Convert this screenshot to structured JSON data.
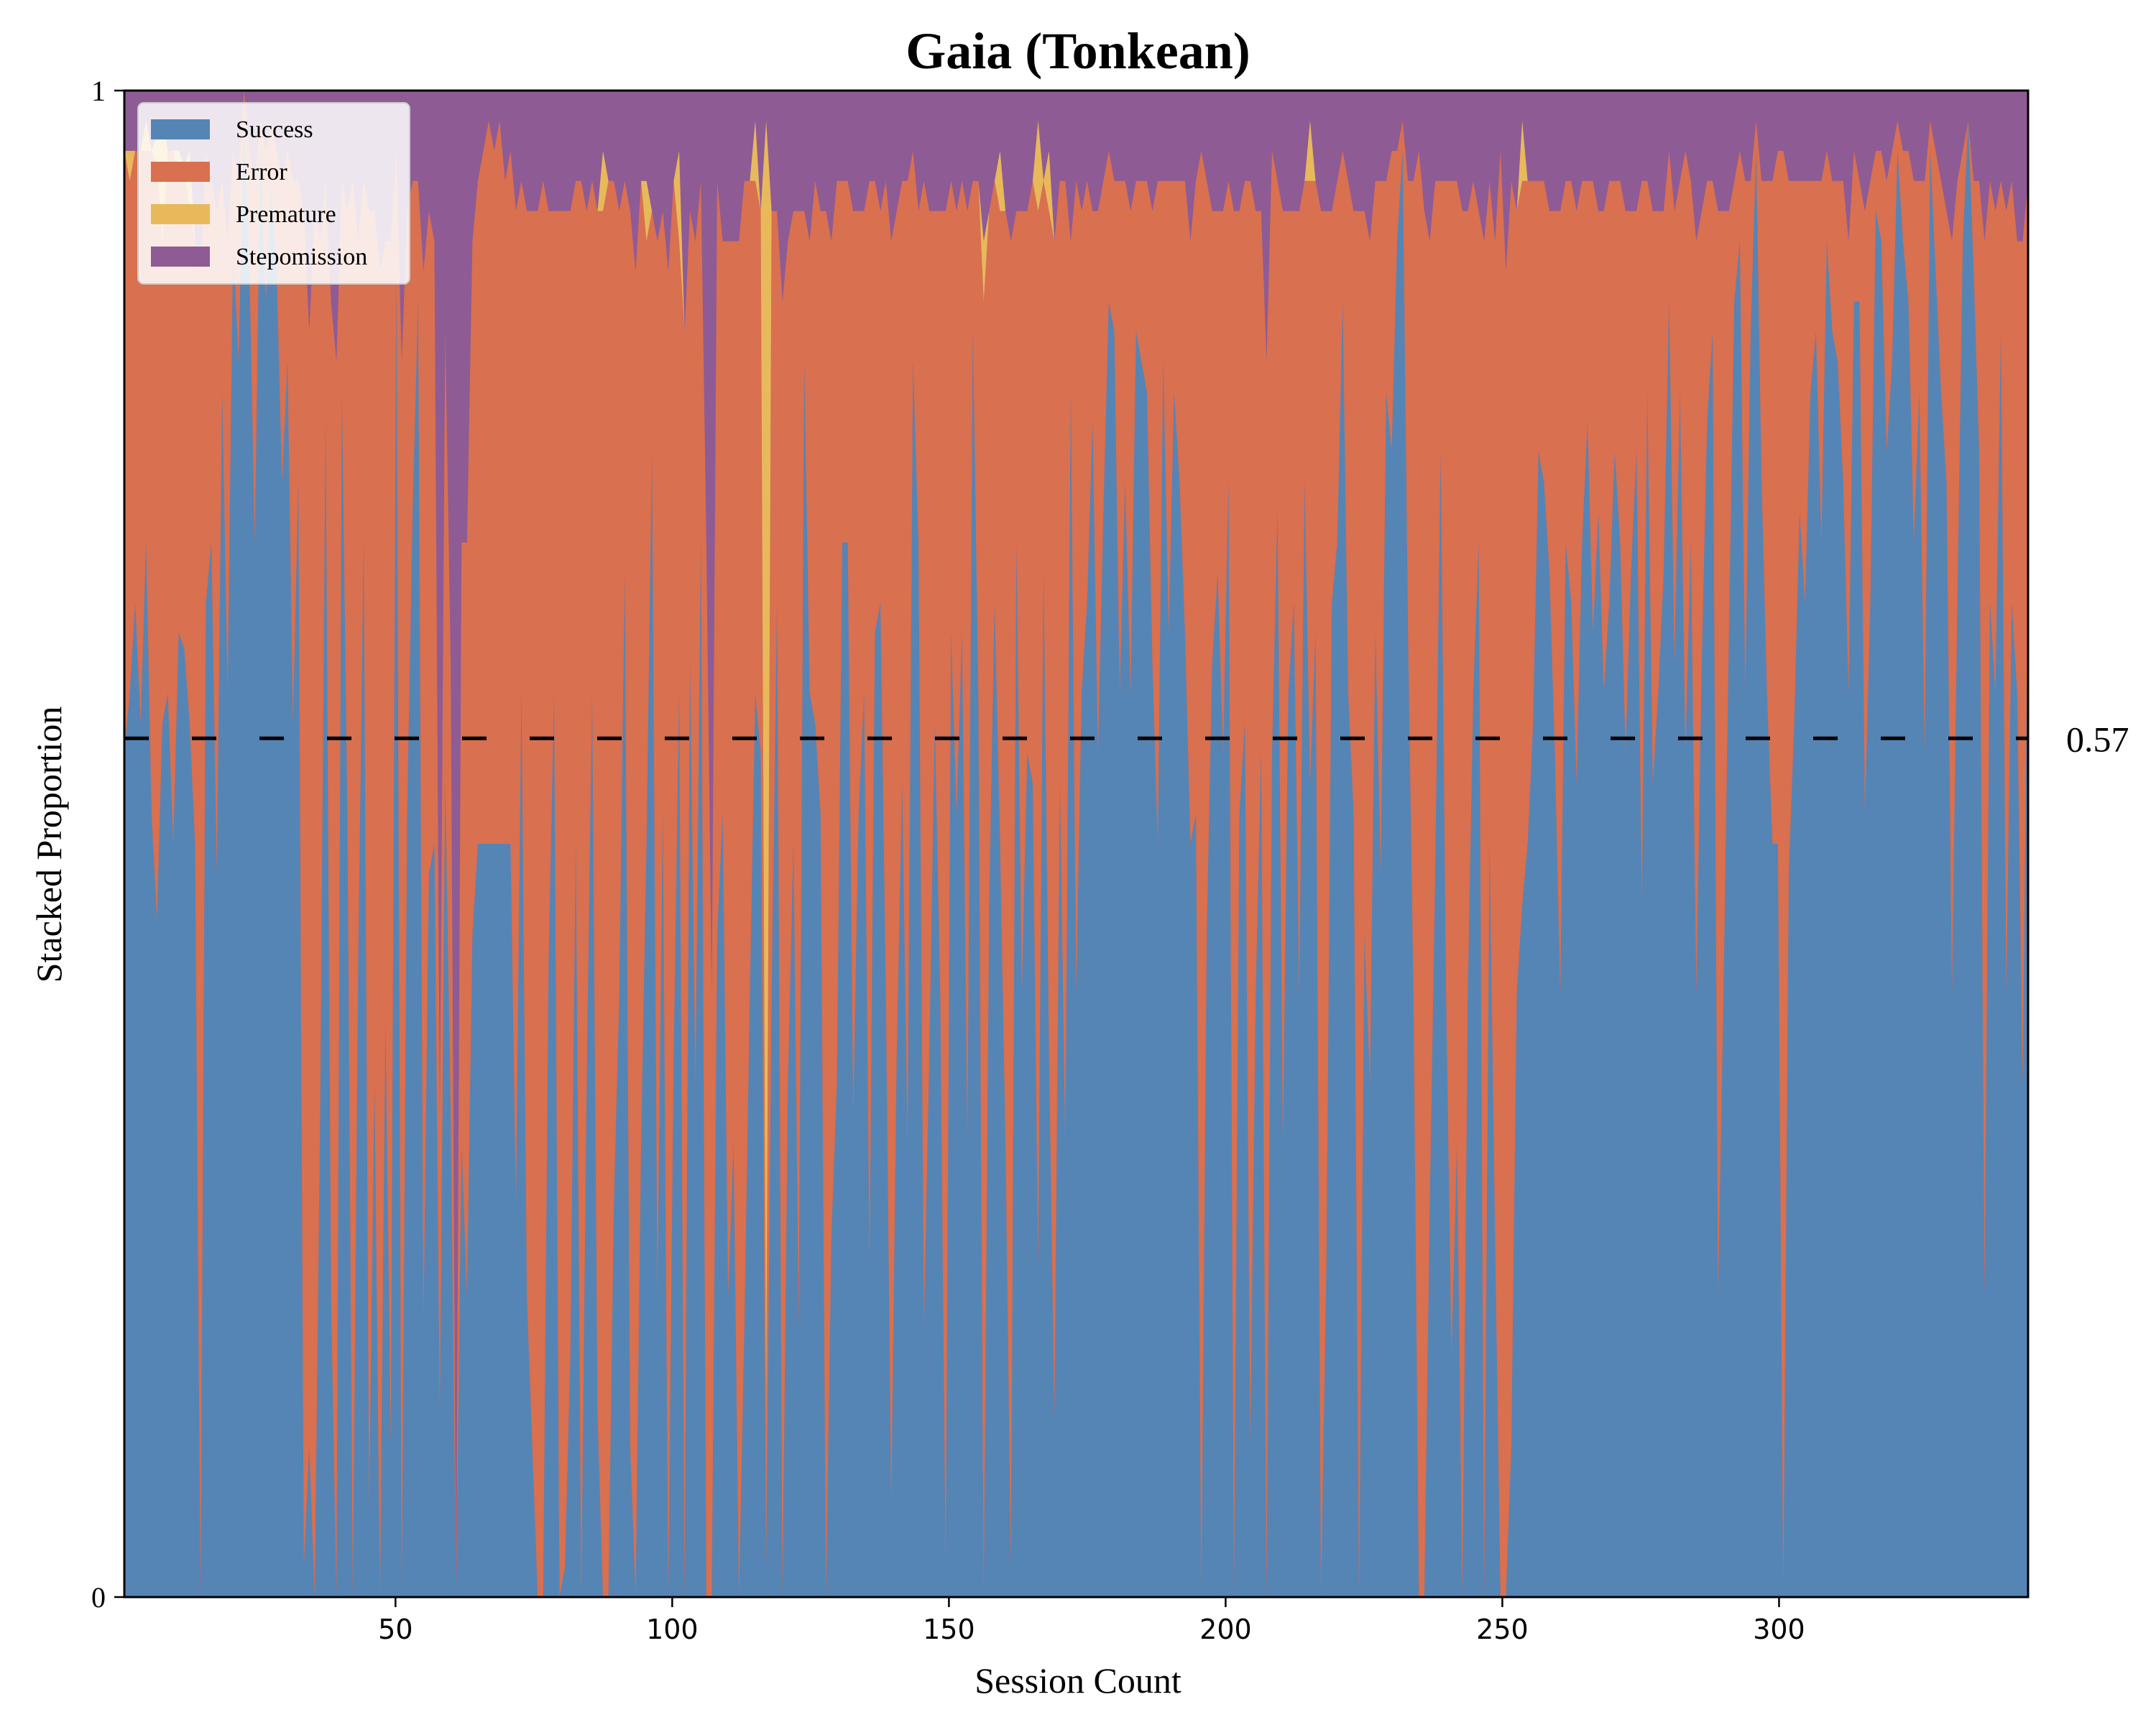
{
  "chart_data": {
    "type": "area",
    "stacked": true,
    "normalized": true,
    "title": "Gaia (Tonkean)",
    "xlabel": "Session Count",
    "ylabel": "Stacked Proportion",
    "xlim": [
      1,
      345
    ],
    "ylim": [
      0,
      1
    ],
    "x_ticks": [
      50,
      100,
      150,
      200,
      250,
      300
    ],
    "y_ticks": [
      0,
      1
    ],
    "grid": "vertical dashed",
    "legend_position": "top-left",
    "reference_line": {
      "y": 0.57,
      "label": "0.57",
      "style": "dashed",
      "color": "#000000"
    },
    "series": [
      {
        "name": "Success",
        "color": "#5585b5",
        "values": [
          0.56,
          0.6,
          0.66,
          0.58,
          0.7,
          0.52,
          0.45,
          0.58,
          0.6,
          0.5,
          0.64,
          0.63,
          0.58,
          0.5,
          0.0,
          0.66,
          0.7,
          0.48,
          0.8,
          0.6,
          0.9,
          0.82,
          0.98,
          0.88,
          0.7,
          0.96,
          0.86,
          0.94,
          0.88,
          0.74,
          0.82,
          0.58,
          0.74,
          0.02,
          0.1,
          0.0,
          0.32,
          0.78,
          0.2,
          0.0,
          0.8,
          0.52,
          0.0,
          0.42,
          0.7,
          0.06,
          0.34,
          0.0,
          0.38,
          0.1,
          0.88,
          0.0,
          0.52,
          0.72,
          0.86,
          0.18,
          0.48,
          0.5,
          0.12,
          0.54,
          0.32,
          0.0,
          0.3,
          0.2,
          0.44,
          0.5,
          0.5,
          0.5,
          0.5,
          0.5,
          0.5,
          0.5,
          0.26,
          0.6,
          0.2,
          0.1,
          0.0,
          0.0,
          0.42,
          0.6,
          0.0,
          0.02,
          0.16,
          0.5,
          0.0,
          0.34,
          0.6,
          0.12,
          0.0,
          0.0,
          0.26,
          0.4,
          0.68,
          0.1,
          0.0,
          0.3,
          0.5,
          0.76,
          0.2,
          0.52,
          0.0,
          0.36,
          0.6,
          0.0,
          0.62,
          0.34,
          0.7,
          0.0,
          0.0,
          0.44,
          0.52,
          0.2,
          0.3,
          0.0,
          0.18,
          0.4,
          0.6,
          0.56,
          0.02,
          0.4,
          0.66,
          0.0,
          0.34,
          0.5,
          0.18,
          0.82,
          0.6,
          0.58,
          0.52,
          0.0,
          0.24,
          0.34,
          0.7,
          0.7,
          0.32,
          0.52,
          0.6,
          0.22,
          0.64,
          0.66,
          0.4,
          0.06,
          0.36,
          0.54,
          0.3,
          0.82,
          0.7,
          0.18,
          0.36,
          0.58,
          0.4,
          0.02,
          0.64,
          0.52,
          0.64,
          0.3,
          0.84,
          0.6,
          0.0,
          0.46,
          0.66,
          0.5,
          0.3,
          0.02,
          0.7,
          0.4,
          0.56,
          0.54,
          0.22,
          0.68,
          0.36,
          0.12,
          0.54,
          0.3,
          0.8,
          0.4,
          0.6,
          0.66,
          0.78,
          0.56,
          0.72,
          0.86,
          0.84,
          0.6,
          0.74,
          0.6,
          0.84,
          0.82,
          0.8,
          0.62,
          0.5,
          0.82,
          0.64,
          0.8,
          0.74,
          0.64,
          0.5,
          0.52,
          0.0,
          0.44,
          0.62,
          0.68,
          0.56,
          0.74,
          0.0,
          0.52,
          0.58,
          0.1,
          0.4,
          0.56,
          0.0,
          0.56,
          0.72,
          0.3,
          0.6,
          0.66,
          0.4,
          0.74,
          0.54,
          0.64,
          0.0,
          0.22,
          0.66,
          0.7,
          0.86,
          0.6,
          0.52,
          0.0,
          0.44,
          0.34,
          0.64,
          0.48,
          0.8,
          0.76,
          0.9,
          0.96,
          0.64,
          0.4,
          0.0,
          0.0,
          0.26,
          0.48,
          0.76,
          0.4,
          0.16,
          0.3,
          0.0,
          0.4,
          0.6,
          0.7,
          0.0,
          0.5,
          0.24,
          0.0,
          0.0,
          0.1,
          0.4,
          0.46,
          0.5,
          0.58,
          0.76,
          0.74,
          0.68,
          0.56,
          0.4,
          0.7,
          0.66,
          0.54,
          0.7,
          0.78,
          0.64,
          0.72,
          0.6,
          0.66,
          0.76,
          0.7,
          0.56,
          0.68,
          0.76,
          0.46,
          0.8,
          0.54,
          0.6,
          0.68,
          0.86,
          0.62,
          0.8,
          0.56,
          0.7,
          0.4,
          0.62,
          0.78,
          0.84,
          0.2,
          0.4,
          0.64,
          0.86,
          0.9,
          0.6,
          0.84,
          0.96,
          0.74,
          0.6,
          0.5,
          0.5,
          0.0,
          0.48,
          0.58,
          0.72,
          0.66,
          0.8,
          0.84,
          0.7,
          0.9,
          0.84,
          0.82,
          0.74,
          0.6,
          0.86,
          0.86,
          0.52,
          0.66,
          0.92,
          0.9,
          0.76,
          0.82,
          0.96,
          0.9,
          0.86,
          0.7,
          0.8,
          0.56,
          0.96,
          0.88,
          0.8,
          0.74,
          0.4,
          0.66,
          0.9,
          0.98,
          0.88,
          0.76,
          0.2,
          0.66,
          0.6,
          0.84,
          0.4,
          0.66,
          0.6,
          0.34,
          0.68
        ]
      },
      {
        "name": "Error",
        "color": "#d9704f",
        "values": [
          0.4,
          0.34,
          0.3,
          0.38,
          0.26,
          0.44,
          0.5,
          0.32,
          0.36,
          0.46,
          0.3,
          0.32,
          0.34,
          0.4,
          0.88,
          0.3,
          0.24,
          0.44,
          0.14,
          0.3,
          0.06,
          0.12,
          0.02,
          0.08,
          0.24,
          0.02,
          0.1,
          0.04,
          0.08,
          0.2,
          0.14,
          0.36,
          0.2,
          0.9,
          0.74,
          0.92,
          0.58,
          0.16,
          0.66,
          0.82,
          0.14,
          0.4,
          0.94,
          0.48,
          0.24,
          0.86,
          0.58,
          0.88,
          0.52,
          0.8,
          0.08,
          0.82,
          0.4,
          0.22,
          0.08,
          0.7,
          0.44,
          0.4,
          0.2,
          0.3,
          0.3,
          0.0,
          0.4,
          0.5,
          0.46,
          0.44,
          0.46,
          0.48,
          0.46,
          0.48,
          0.44,
          0.46,
          0.66,
          0.34,
          0.72,
          0.82,
          0.92,
          0.94,
          0.5,
          0.32,
          0.92,
          0.9,
          0.76,
          0.44,
          0.94,
          0.58,
          0.34,
          0.8,
          0.92,
          0.94,
          0.68,
          0.52,
          0.26,
          0.82,
          0.88,
          0.64,
          0.4,
          0.16,
          0.7,
          0.4,
          0.88,
          0.58,
          0.3,
          0.84,
          0.3,
          0.56,
          0.24,
          0.7,
          0.4,
          0.5,
          0.38,
          0.7,
          0.6,
          0.9,
          0.76,
          0.54,
          0.34,
          0.36,
          0.1,
          0.52,
          0.26,
          0.86,
          0.56,
          0.42,
          0.74,
          0.1,
          0.3,
          0.36,
          0.4,
          0.92,
          0.66,
          0.6,
          0.24,
          0.24,
          0.6,
          0.4,
          0.32,
          0.72,
          0.3,
          0.26,
          0.54,
          0.84,
          0.56,
          0.4,
          0.64,
          0.14,
          0.22,
          0.76,
          0.56,
          0.34,
          0.52,
          0.9,
          0.3,
          0.4,
          0.3,
          0.62,
          0.1,
          0.34,
          0.86,
          0.46,
          0.28,
          0.42,
          0.62,
          0.88,
          0.22,
          0.52,
          0.36,
          0.4,
          0.7,
          0.26,
          0.56,
          0.78,
          0.4,
          0.64,
          0.1,
          0.54,
          0.32,
          0.28,
          0.14,
          0.36,
          0.22,
          0.1,
          0.1,
          0.34,
          0.2,
          0.32,
          0.1,
          0.12,
          0.14,
          0.3,
          0.44,
          0.12,
          0.3,
          0.14,
          0.2,
          0.3,
          0.4,
          0.42,
          0.96,
          0.5,
          0.3,
          0.24,
          0.36,
          0.2,
          0.92,
          0.4,
          0.36,
          0.84,
          0.52,
          0.36,
          0.82,
          0.4,
          0.22,
          0.62,
          0.32,
          0.26,
          0.52,
          0.2,
          0.4,
          0.3,
          0.92,
          0.7,
          0.26,
          0.24,
          0.1,
          0.34,
          0.4,
          0.92,
          0.48,
          0.56,
          0.3,
          0.46,
          0.14,
          0.2,
          0.06,
          0.02,
          0.3,
          0.54,
          0.96,
          0.92,
          0.64,
          0.46,
          0.18,
          0.54,
          0.78,
          0.64,
          0.92,
          0.52,
          0.34,
          0.22,
          0.9,
          0.44,
          0.66,
          0.96,
          0.88,
          0.84,
          0.52,
          0.48,
          0.44,
          0.36,
          0.18,
          0.2,
          0.24,
          0.36,
          0.52,
          0.24,
          0.28,
          0.38,
          0.24,
          0.16,
          0.3,
          0.2,
          0.32,
          0.28,
          0.18,
          0.24,
          0.36,
          0.24,
          0.16,
          0.48,
          0.14,
          0.38,
          0.32,
          0.24,
          0.1,
          0.3,
          0.14,
          0.4,
          0.24,
          0.5,
          0.3,
          0.16,
          0.1,
          0.72,
          0.52,
          0.28,
          0.08,
          0.06,
          0.34,
          0.1,
          0.02,
          0.2,
          0.34,
          0.44,
          0.46,
          0.96,
          0.46,
          0.36,
          0.22,
          0.28,
          0.14,
          0.1,
          0.24,
          0.06,
          0.1,
          0.12,
          0.2,
          0.3,
          0.1,
          0.08,
          0.4,
          0.28,
          0.04,
          0.06,
          0.18,
          0.14,
          0.02,
          0.06,
          0.1,
          0.24,
          0.14,
          0.38,
          0.02,
          0.08,
          0.14,
          0.18,
          0.5,
          0.28,
          0.06,
          0.0,
          0.06,
          0.18,
          0.7,
          0.28,
          0.32,
          0.1,
          0.52,
          0.28,
          0.3,
          0.56,
          0.26
        ]
      },
      {
        "name": "Premature",
        "color": "#e8b95a",
        "values": [
          0.0,
          0.02,
          0.0,
          0.0,
          0.02,
          0.0,
          0.02,
          0.08,
          0.0,
          0.0,
          0.02,
          0.0,
          0.04,
          0.0,
          0.0,
          0.0,
          0.0,
          0.0,
          0.0,
          0.0,
          0.0,
          0.0,
          0.0,
          0.0,
          0.0,
          0.0,
          0.0,
          0.0,
          0.0,
          0.0,
          0.0,
          0.0,
          0.0,
          0.0,
          0.0,
          0.0,
          0.0,
          0.0,
          0.0,
          0.0,
          0.0,
          0.0,
          0.0,
          0.0,
          0.0,
          0.0,
          0.0,
          0.0,
          0.0,
          0.0,
          0.0,
          0.0,
          0.0,
          0.0,
          0.0,
          0.0,
          0.0,
          0.0,
          0.0,
          0.0,
          0.0,
          0.0,
          0.0,
          0.0,
          0.0,
          0.0,
          0.0,
          0.0,
          0.0,
          0.0,
          0.0,
          0.0,
          0.0,
          0.0,
          0.0,
          0.0,
          0.0,
          0.0,
          0.0,
          0.0,
          0.0,
          0.0,
          0.0,
          0.0,
          0.0,
          0.0,
          0.0,
          0.0,
          0.04,
          0.0,
          0.0,
          0.0,
          0.0,
          0.0,
          0.0,
          0.0,
          0.04,
          0.0,
          0.0,
          0.0,
          0.0,
          0.0,
          0.06,
          0.0,
          0.0,
          0.0,
          0.0,
          0.0,
          0.0,
          0.0,
          0.0,
          0.0,
          0.0,
          0.0,
          0.0,
          0.0,
          0.04,
          0.0,
          0.86,
          0.0,
          0.0,
          0.0,
          0.0,
          0.0,
          0.0,
          0.0,
          0.0,
          0.0,
          0.0,
          0.0,
          0.0,
          0.0,
          0.0,
          0.0,
          0.0,
          0.0,
          0.0,
          0.0,
          0.0,
          0.0,
          0.0,
          0.0,
          0.0,
          0.0,
          0.0,
          0.0,
          0.0,
          0.0,
          0.0,
          0.0,
          0.0,
          0.0,
          0.0,
          0.0,
          0.0,
          0.0,
          0.0,
          0.0,
          0.04,
          0.0,
          0.0,
          0.04,
          0.0,
          0.0,
          0.0,
          0.0,
          0.0,
          0.0,
          0.06,
          0.0,
          0.04,
          0.0,
          0.0,
          0.0,
          0.0,
          0.0,
          0.0,
          0.0,
          0.0,
          0.0,
          0.0,
          0.0,
          0.0,
          0.0,
          0.0,
          0.0,
          0.0,
          0.0,
          0.0,
          0.0,
          0.0,
          0.0,
          0.0,
          0.0,
          0.0,
          0.0,
          0.0,
          0.0,
          0.0,
          0.0,
          0.0,
          0.0,
          0.0,
          0.0,
          0.0,
          0.0,
          0.0,
          0.0,
          0.0,
          0.0,
          0.0,
          0.0,
          0.0,
          0.0,
          0.0,
          0.0,
          0.0,
          0.0,
          0.04,
          0.0,
          0.0,
          0.0,
          0.0,
          0.0,
          0.0,
          0.0,
          0.0,
          0.0,
          0.0,
          0.0,
          0.0,
          0.0,
          0.0,
          0.0,
          0.0,
          0.0,
          0.0,
          0.0,
          0.0,
          0.0,
          0.0,
          0.0,
          0.0,
          0.0,
          0.0,
          0.0,
          0.0,
          0.0,
          0.0,
          0.0,
          0.0,
          0.0,
          0.0,
          0.0,
          0.0,
          0.0,
          0.0,
          0.04,
          0.0,
          0.0,
          0.0,
          0.0,
          0.0,
          0.0,
          0.0,
          0.0,
          0.0,
          0.0,
          0.0,
          0.0,
          0.0,
          0.0,
          0.0,
          0.0,
          0.0,
          0.0,
          0.0,
          0.0,
          0.0,
          0.0,
          0.0,
          0.0,
          0.0,
          0.0,
          0.0,
          0.0,
          0.0,
          0.0,
          0.0,
          0.0,
          0.0,
          0.0,
          0.0,
          0.0,
          0.0,
          0.0,
          0.0,
          0.0,
          0.0,
          0.0,
          0.0,
          0.0,
          0.0,
          0.0,
          0.0,
          0.0,
          0.0,
          0.0,
          0.0,
          0.0,
          0.0,
          0.0,
          0.0,
          0.0,
          0.0,
          0.0,
          0.0,
          0.0,
          0.0,
          0.0,
          0.0,
          0.0,
          0.0,
          0.0,
          0.0,
          0.0,
          0.0,
          0.0,
          0.0,
          0.0,
          0.0,
          0.0,
          0.0,
          0.0,
          0.0,
          0.0,
          0.0,
          0.0,
          0.0,
          0.0,
          0.0,
          0.0,
          0.0,
          0.0,
          0.0,
          0.0,
          0.0,
          0.0,
          0.0,
          0.0,
          0.0,
          0.06,
          0.0,
          0.0,
          0.0,
          0.0,
          0.0,
          0.0,
          0.0,
          0.0,
          0.0
        ]
      }
    ],
    "remainder_series": {
      "name": "Stepomission",
      "color": "#8e5b95"
    }
  }
}
